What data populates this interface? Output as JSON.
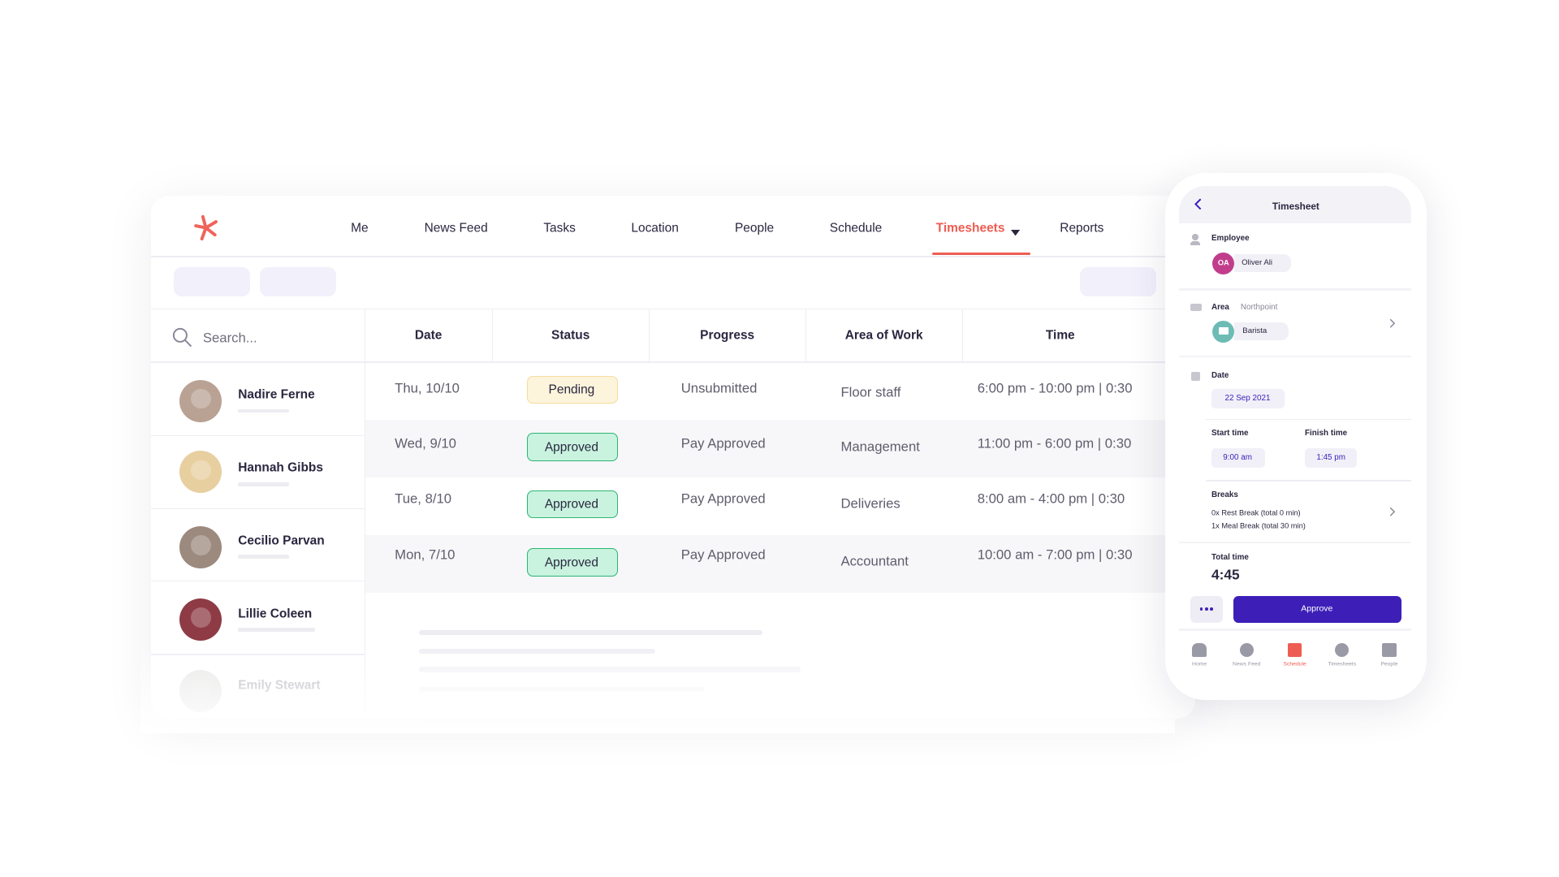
{
  "nav": {
    "items": [
      "Me",
      "News Feed",
      "Tasks",
      "Location",
      "People",
      "Schedule",
      "Timesheets",
      "Reports"
    ],
    "active": 6
  },
  "search": {
    "placeholder": "Search..."
  },
  "table": {
    "headers": [
      "Date",
      "Status",
      "Progress",
      "Area of Work",
      "Time"
    ],
    "rows": [
      [
        "Thu, 10/10",
        "Pending",
        "Unsubmitted",
        "Floor staff",
        "6:00 pm - 10:00 pm | 0:30"
      ],
      [
        "Wed, 9/10",
        "Approved",
        "Pay Approved",
        "Management",
        "11:00 pm - 6:00 pm | 0:30"
      ],
      [
        "Tue, 8/10",
        "Approved",
        "Pay Approved",
        "Deliveries",
        "8:00 am - 4:00 pm | 0:30"
      ],
      [
        "Mon, 7/10",
        "Approved",
        "Pay Approved",
        "Accountant",
        "10:00 am - 7:00 pm | 0:30"
      ]
    ],
    "badge_colors": [
      {
        "fill": "#fdf4dc",
        "border": "#f6dc9c"
      },
      {
        "fill": "#c9f3df",
        "border": "#2bb673"
      },
      {
        "fill": "#c9f3df",
        "border": "#2bb673"
      },
      {
        "fill": "#c9f3df",
        "border": "#2bb673"
      }
    ]
  },
  "people": [
    "Nadire Ferne",
    "Hannah Gibbs",
    "Cecilio Parvan",
    "Lillie Coleen",
    "Emily Stewart"
  ],
  "phone": {
    "title": "Timesheet",
    "employee": {
      "label": "Employee",
      "initials": "OA",
      "name": "Oliver Ali"
    },
    "area": {
      "label": "Area",
      "location": "Northpoint",
      "value": "Barista"
    },
    "date": {
      "label": "Date",
      "value": "22 Sep 2021"
    },
    "start": {
      "label": "Start time",
      "value": "9:00 am"
    },
    "finish": {
      "label": "Finish time",
      "value": "1:45 pm"
    },
    "breaks": {
      "label": "Breaks",
      "lines": [
        "0x Rest Break (total 0 min)",
        "1x Meal Break (total 30 min)"
      ]
    },
    "total": {
      "label": "Total time",
      "value": "4:45"
    },
    "approve": "Approve",
    "tabs": [
      "Home",
      "News Feed",
      "Schedule",
      "Timesheets",
      "People"
    ],
    "active_tab": 2
  }
}
